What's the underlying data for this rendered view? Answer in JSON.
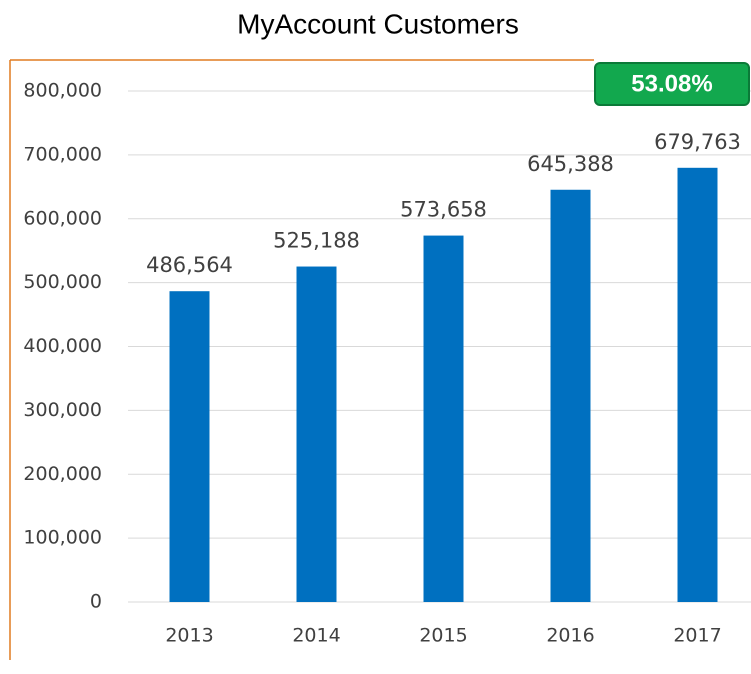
{
  "chart_data": {
    "type": "bar",
    "title": "MyAccount Customers",
    "annotation": "53.08%",
    "categories": [
      "2013",
      "2014",
      "2015",
      "2016",
      "2017"
    ],
    "values": [
      486564,
      525188,
      573658,
      645388,
      679763
    ],
    "value_labels": [
      "486,564",
      "525,188",
      "573,658",
      "645,388",
      "679,763"
    ],
    "color": "#0070c0",
    "ylim": [
      0,
      800000
    ],
    "yticks": [
      0,
      {
        "value": 100000,
        "label": "100,000"
      },
      {
        "value": 200000,
        "label": "200,000"
      },
      {
        "value": 300000,
        "label": "300,000"
      },
      {
        "value": 400000,
        "label": "400,000"
      },
      {
        "value": 500000,
        "label": "500,000"
      },
      {
        "value": 600000,
        "label": "600,000"
      },
      {
        "value": 700000,
        "label": "700,000"
      },
      {
        "value": 800000,
        "label": "800,000"
      }
    ],
    "grid": true
  }
}
